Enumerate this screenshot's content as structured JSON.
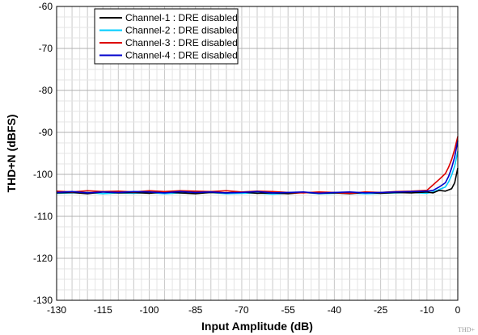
{
  "chart_data": {
    "type": "line",
    "title": "",
    "xlabel": "Input Amplitude (dB)",
    "ylabel": "THD+N (dBFS)",
    "xlim": [
      -130,
      0
    ],
    "ylim": [
      -130,
      -60
    ],
    "xticks": [
      -130,
      -115,
      -100,
      -85,
      -70,
      -55,
      -40,
      -25,
      -10,
      0
    ],
    "yticks": [
      -130,
      -120,
      -110,
      -100,
      -90,
      -80,
      -70,
      -60
    ],
    "xtick_labels": [
      "-130",
      "-115",
      "-100",
      "-85",
      "-70",
      "-55",
      "-40",
      "-25",
      "-10",
      "0"
    ],
    "ytick_labels": [
      "-130",
      "-120",
      "-110",
      "-100",
      "-90",
      "-80",
      "-70",
      "-60"
    ],
    "grid": true,
    "legend_position": "top-left",
    "series": [
      {
        "name": "Channel-1 : DRE disabled",
        "color": "#000000",
        "x": [
          -130,
          -125,
          -120,
          -115,
          -110,
          -105,
          -100,
          -95,
          -90,
          -85,
          -80,
          -75,
          -70,
          -65,
          -60,
          -55,
          -50,
          -45,
          -40,
          -35,
          -30,
          -25,
          -20,
          -15,
          -10,
          -8,
          -6,
          -4,
          -3,
          -2,
          -1,
          0
        ],
        "y": [
          -104.4,
          -104.3,
          -104.6,
          -104.2,
          -104.4,
          -104.3,
          -104.5,
          -104.2,
          -104.4,
          -104.6,
          -104.3,
          -104.4,
          -104.2,
          -104.5,
          -104.4,
          -104.6,
          -104.3,
          -104.5,
          -104.4,
          -104.6,
          -104.3,
          -104.5,
          -104.3,
          -104.4,
          -104.2,
          -104.4,
          -103.8,
          -104.0,
          -103.7,
          -103.4,
          -102.0,
          -98.5
        ]
      },
      {
        "name": "Channel-2 : DRE disabled",
        "color": "#00ccff",
        "x": [
          -130,
          -125,
          -120,
          -115,
          -110,
          -105,
          -100,
          -95,
          -90,
          -85,
          -80,
          -75,
          -70,
          -65,
          -60,
          -55,
          -50,
          -45,
          -40,
          -35,
          -30,
          -25,
          -20,
          -15,
          -10,
          -8,
          -6,
          -4,
          -3,
          -2,
          -1,
          0
        ],
        "y": [
          -104.5,
          -104.4,
          -104.3,
          -104.6,
          -104.4,
          -104.5,
          -104.3,
          -104.6,
          -104.4,
          -104.5,
          -104.3,
          -104.6,
          -104.5,
          -104.4,
          -104.7,
          -104.5,
          -104.3,
          -104.6,
          -104.5,
          -104.4,
          -104.6,
          -104.5,
          -104.4,
          -104.3,
          -104.5,
          -104.2,
          -103.6,
          -103.0,
          -101.8,
          -100.2,
          -98.0,
          -94.5
        ]
      },
      {
        "name": "Channel-3 : DRE disabled",
        "color": "#dd0000",
        "x": [
          -130,
          -125,
          -120,
          -115,
          -110,
          -105,
          -100,
          -95,
          -90,
          -85,
          -80,
          -75,
          -70,
          -65,
          -60,
          -55,
          -50,
          -45,
          -40,
          -35,
          -30,
          -25,
          -20,
          -15,
          -10,
          -8,
          -6,
          -4,
          -3,
          -2,
          -1,
          0
        ],
        "y": [
          -104.0,
          -104.2,
          -103.9,
          -104.1,
          -104.0,
          -104.2,
          -103.9,
          -104.1,
          -103.9,
          -104.0,
          -104.1,
          -103.9,
          -104.2,
          -104.0,
          -104.1,
          -104.3,
          -104.4,
          -104.2,
          -104.3,
          -104.5,
          -104.2,
          -104.3,
          -104.1,
          -104.0,
          -103.8,
          -102.5,
          -101.2,
          -99.8,
          -98.3,
          -96.5,
          -94.0,
          -91.0
        ]
      },
      {
        "name": "Channel-4 : DRE disabled",
        "color": "#0000cc",
        "x": [
          -130,
          -125,
          -120,
          -115,
          -110,
          -105,
          -100,
          -95,
          -90,
          -85,
          -80,
          -75,
          -70,
          -65,
          -60,
          -55,
          -50,
          -45,
          -40,
          -35,
          -30,
          -25,
          -20,
          -15,
          -10,
          -8,
          -6,
          -4,
          -3,
          -2,
          -1,
          0
        ],
        "y": [
          -104.3,
          -104.1,
          -104.4,
          -104.2,
          -104.3,
          -104.1,
          -104.2,
          -104.4,
          -104.1,
          -104.3,
          -104.2,
          -104.4,
          -104.3,
          -104.1,
          -104.4,
          -104.3,
          -104.2,
          -104.5,
          -104.3,
          -104.2,
          -104.4,
          -104.3,
          -104.2,
          -104.1,
          -104.0,
          -103.8,
          -103.0,
          -102.0,
          -100.5,
          -98.5,
          -95.8,
          -92.0
        ]
      }
    ]
  },
  "watermark": "THD+"
}
